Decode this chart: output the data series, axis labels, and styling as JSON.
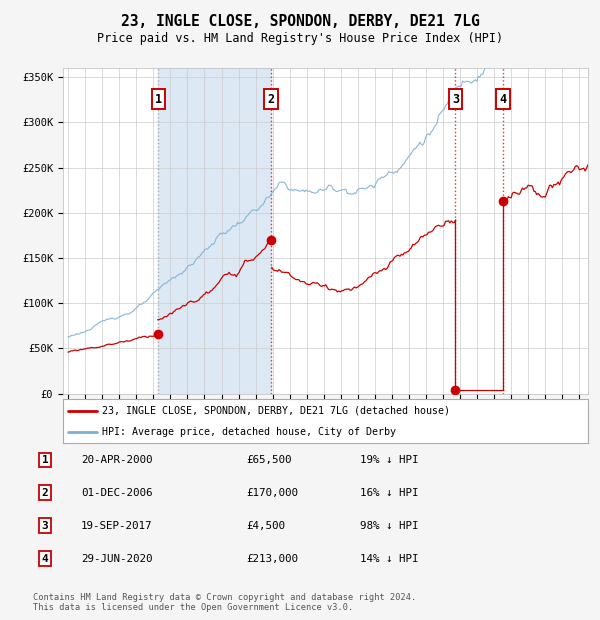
{
  "title": "23, INGLE CLOSE, SPONDON, DERBY, DE21 7LG",
  "subtitle": "Price paid vs. HM Land Registry's House Price Index (HPI)",
  "ylim": [
    0,
    360000
  ],
  "yticks": [
    0,
    50000,
    100000,
    150000,
    200000,
    250000,
    300000,
    350000
  ],
  "ytick_labels": [
    "£0",
    "£50K",
    "£100K",
    "£150K",
    "£200K",
    "£250K",
    "£300K",
    "£350K"
  ],
  "xlim_start": 1994.7,
  "xlim_end": 2025.5,
  "sale_date_floats": [
    2000.3,
    2006.92,
    2017.72,
    2020.5
  ],
  "sale_prices": [
    65500,
    170000,
    4500,
    213000
  ],
  "sale_labels": [
    "1",
    "2",
    "3",
    "4"
  ],
  "red_line_color": "#cc0000",
  "blue_line_color": "#7ab0d4",
  "shading_color": "#dce9f5",
  "dot_color": "#cc0000",
  "legend_line1": "23, INGLE CLOSE, SPONDON, DERBY, DE21 7LG (detached house)",
  "legend_line2": "HPI: Average price, detached house, City of Derby",
  "table_entries": [
    {
      "num": "1",
      "date": "20-APR-2000",
      "price": "£65,500",
      "note": "19% ↓ HPI"
    },
    {
      "num": "2",
      "date": "01-DEC-2006",
      "price": "£170,000",
      "note": "16% ↓ HPI"
    },
    {
      "num": "3",
      "date": "19-SEP-2017",
      "price": "£4,500",
      "note": "98% ↓ HPI"
    },
    {
      "num": "4",
      "date": "29-JUN-2020",
      "price": "£213,000",
      "note": "14% ↓ HPI"
    }
  ],
  "footnote": "Contains HM Land Registry data © Crown copyright and database right 2024.\nThis data is licensed under the Open Government Licence v3.0.",
  "bg_color": "#f5f5f5",
  "plot_bg_color": "#ffffff"
}
